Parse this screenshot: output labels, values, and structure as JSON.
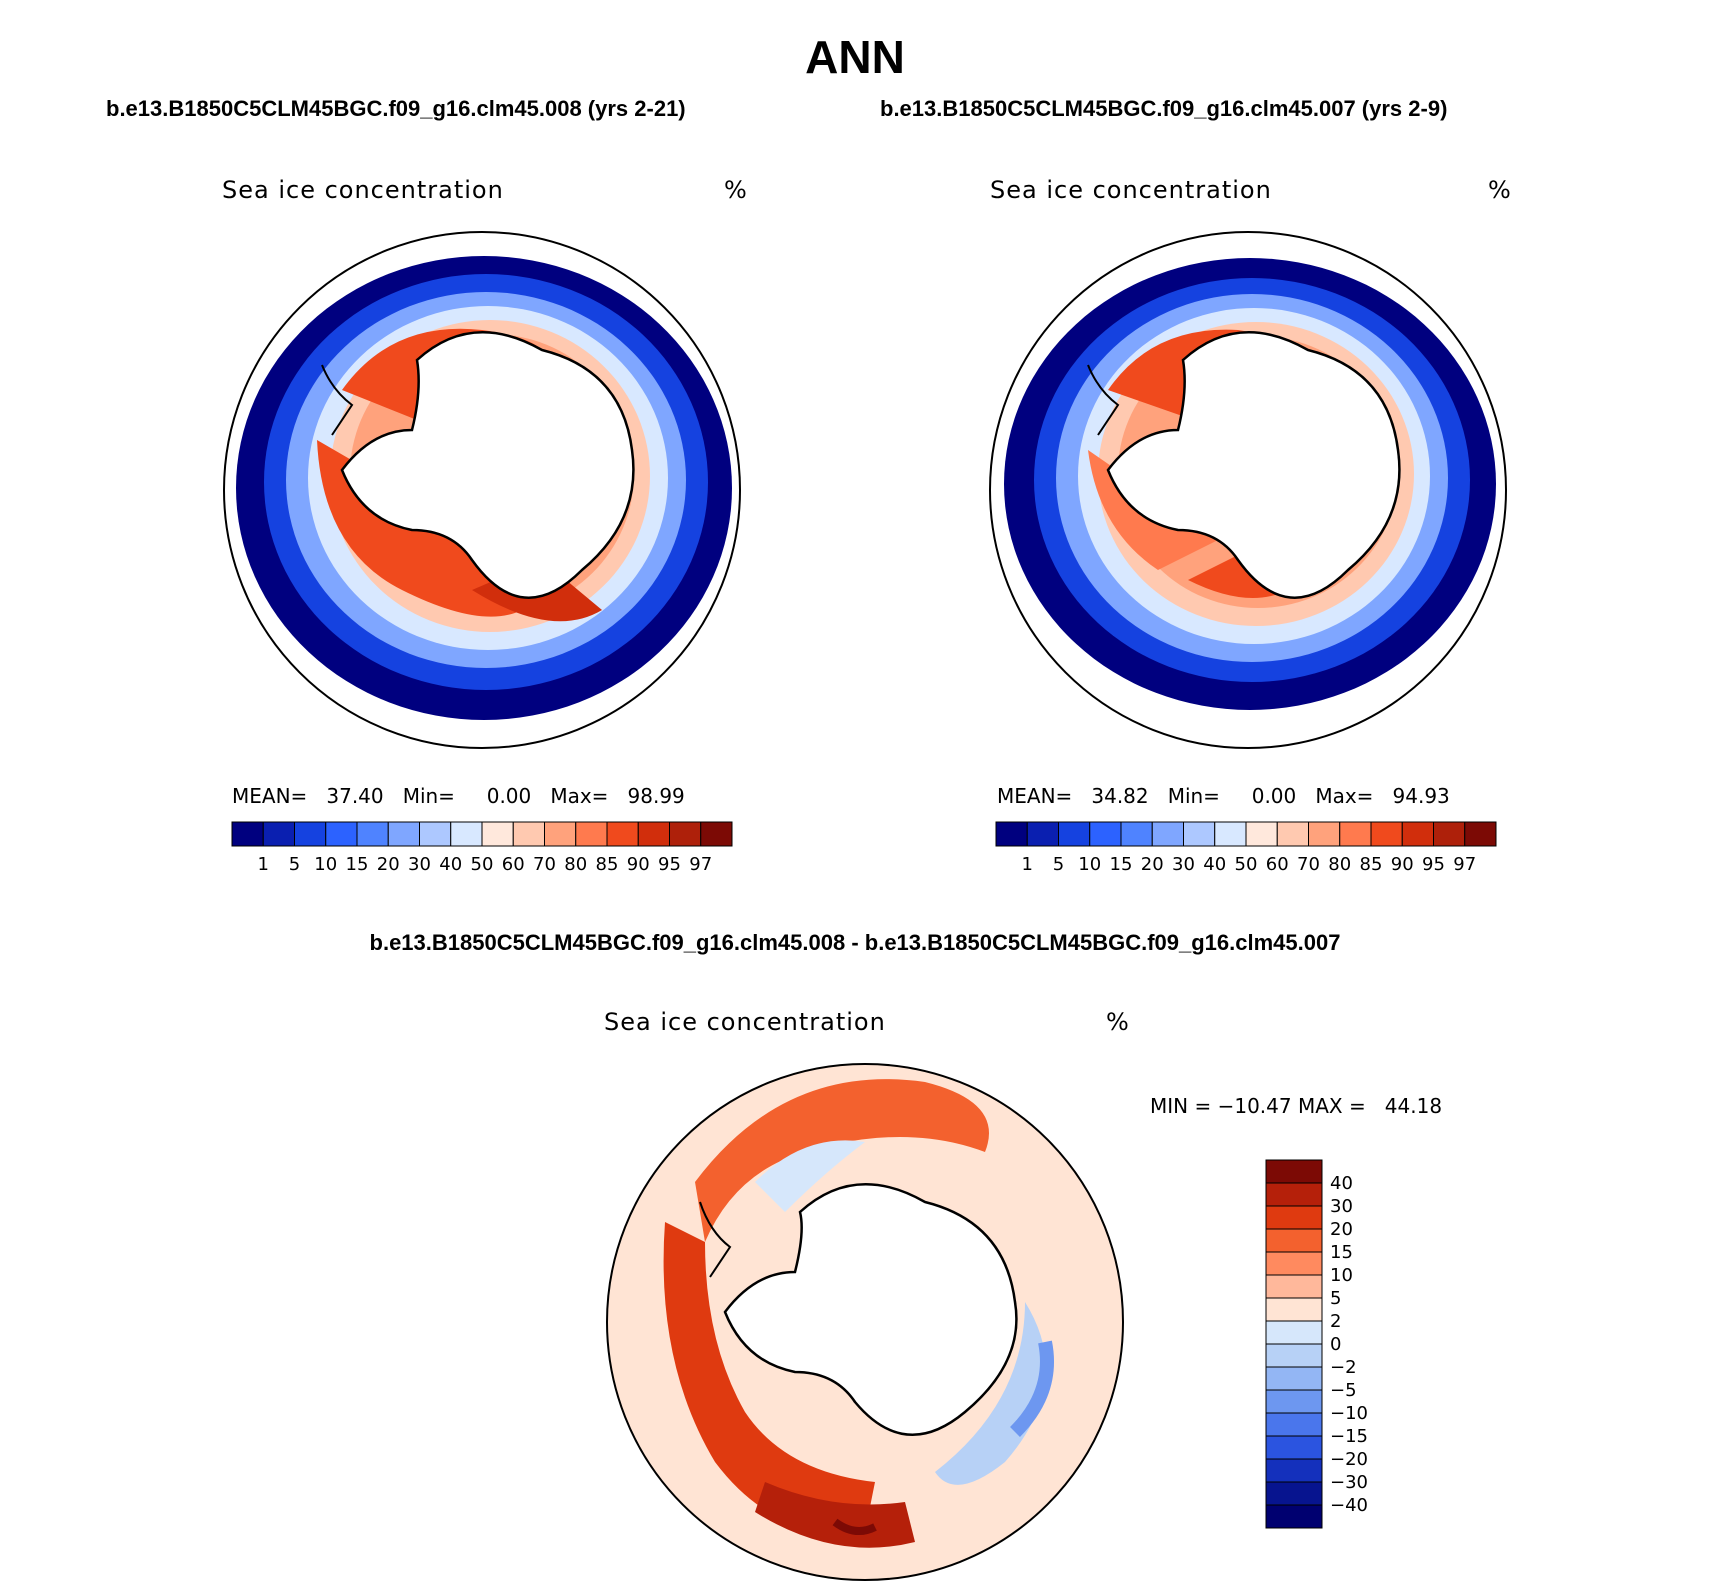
{
  "figure": {
    "title": "ANN",
    "case1_title": "b.e13.B1850C5CLM45BGC.f09_g16.clm45.008 (yrs 2-21)",
    "case2_title": "b.e13.B1850C5CLM45BGC.f09_g16.clm45.007 (yrs 2-9)",
    "diff_title": "b.e13.B1850C5CLM45BGC.f09_g16.clm45.008 - b.e13.B1850C5CLM45BGC.f09_g16.clm45.007"
  },
  "panels": [
    {
      "variable": "Sea ice concentration",
      "units": "%",
      "stats": "MEAN=   37.40   Min=     0.00   Max=   98.99"
    },
    {
      "variable": "Sea ice concentration",
      "units": "%",
      "stats": "MEAN=   34.82   Min=     0.00   Max=   94.93"
    }
  ],
  "diff_panel": {
    "variable": "Sea ice concentration",
    "units": "%",
    "stats": "MIN = −10.47 MAX =   44.18"
  },
  "chart_data": [
    {
      "type": "heatmap",
      "projection": "south-polar-stereographic",
      "title": "Sea ice concentration",
      "units": "%",
      "mean": 37.4,
      "min": 0.0,
      "max": 98.99,
      "colorbar": {
        "levels": [
          "1",
          "5",
          "10",
          "15",
          "20",
          "30",
          "40",
          "50",
          "60",
          "70",
          "80",
          "85",
          "90",
          "95",
          "97"
        ],
        "colors": [
          "#00007f",
          "#0a1fb0",
          "#1542e0",
          "#2c62ff",
          "#4f83ff",
          "#7fa6ff",
          "#adc8ff",
          "#d8e8ff",
          "#ffe8dc",
          "#ffc9b0",
          "#ffa27c",
          "#ff7a4e",
          "#f04a1d",
          "#d12e0c",
          "#ae200a",
          "#7c0a05"
        ]
      }
    },
    {
      "type": "heatmap",
      "projection": "south-polar-stereographic",
      "title": "Sea ice concentration",
      "units": "%",
      "mean": 34.82,
      "min": 0.0,
      "max": 94.93,
      "colorbar": {
        "levels": [
          "1",
          "5",
          "10",
          "15",
          "20",
          "30",
          "40",
          "50",
          "60",
          "70",
          "80",
          "85",
          "90",
          "95",
          "97"
        ],
        "colors": [
          "#00007f",
          "#0a1fb0",
          "#1542e0",
          "#2c62ff",
          "#4f83ff",
          "#7fa6ff",
          "#adc8ff",
          "#d8e8ff",
          "#ffe8dc",
          "#ffc9b0",
          "#ffa27c",
          "#ff7a4e",
          "#f04a1d",
          "#d12e0c",
          "#ae200a",
          "#7c0a05"
        ]
      }
    },
    {
      "type": "heatmap",
      "projection": "south-polar-stereographic",
      "title": "Sea ice concentration",
      "units": "%",
      "min": -10.47,
      "max": 44.18,
      "colorbar": {
        "levels": [
          "40",
          "30",
          "20",
          "15",
          "10",
          "5",
          "2",
          "0",
          "−2",
          "−5",
          "−10",
          "−15",
          "−20",
          "−30",
          "−40"
        ],
        "colors": [
          "#7c0a05",
          "#b5200a",
          "#df3a10",
          "#f3612e",
          "#ff8a5f",
          "#ffb89b",
          "#ffe4d4",
          "#d6e7fb",
          "#b7d1f6",
          "#93b6f4",
          "#6d97f0",
          "#4a76ec",
          "#2b54e0",
          "#1430bc",
          "#07148f",
          "#000070"
        ]
      }
    }
  ]
}
